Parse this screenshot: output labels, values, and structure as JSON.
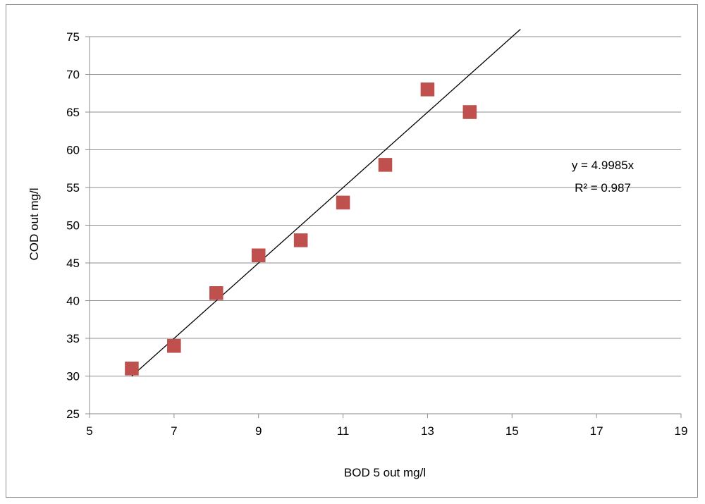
{
  "chart_data": {
    "type": "scatter",
    "title": "",
    "xlabel": "BOD 5 out mg/l",
    "ylabel": "COD out mg/l",
    "xlim": [
      5,
      19
    ],
    "ylim": [
      25,
      75
    ],
    "x_ticks": [
      5,
      7,
      9,
      11,
      13,
      15,
      17,
      19
    ],
    "y_ticks": [
      25,
      30,
      35,
      40,
      45,
      50,
      55,
      60,
      65,
      70,
      75
    ],
    "grid": "horizontal",
    "legend": "none",
    "series": [
      {
        "marker": "square",
        "color": "#c0504d",
        "x": [
          6,
          7,
          8,
          9,
          10,
          11,
          12,
          13,
          14
        ],
        "y": [
          31,
          34,
          41,
          46,
          48,
          53,
          58,
          68,
          65
        ]
      }
    ],
    "trendline": {
      "type": "linear",
      "slope": 4.9985,
      "intercept": 0,
      "color": "#000000",
      "x_range": [
        6,
        15.2
      ]
    },
    "annotations": {
      "equation": "y = 4.9985x",
      "r_squared": "R² = 0.987"
    }
  }
}
